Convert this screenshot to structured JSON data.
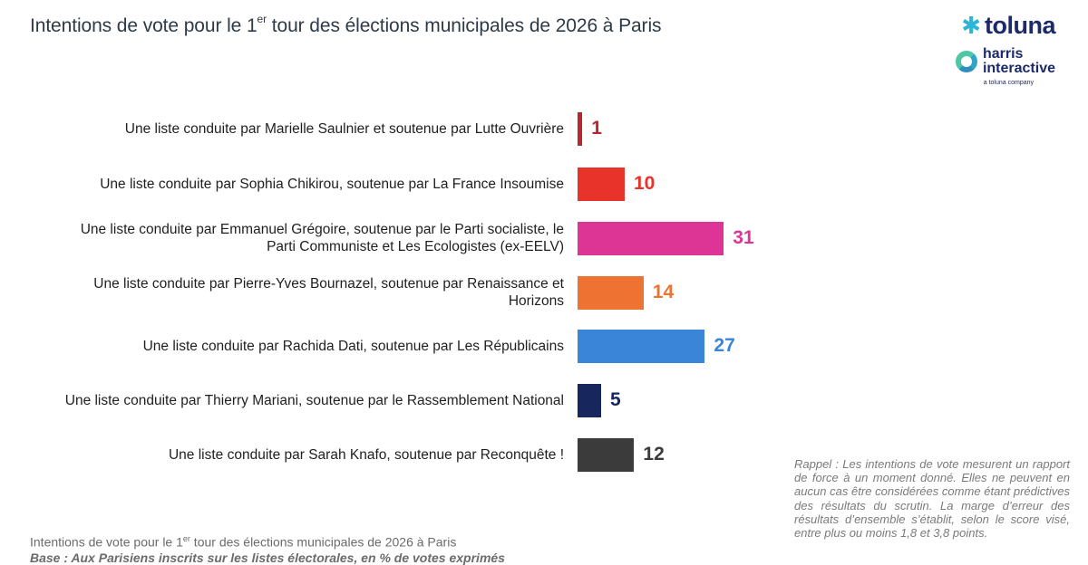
{
  "header": {
    "title_before": "Intentions de vote pour le 1",
    "title_sup": "er",
    "title_after": " tour des élections municipales de 2026 à Paris"
  },
  "logos": {
    "toluna": "toluna",
    "harris_line1": "harris",
    "harris_line2": "interactive",
    "company": "a toluna company"
  },
  "chart_data": {
    "type": "bar",
    "orientation": "horizontal",
    "title": "Intentions de vote pour le 1er tour des élections municipales de 2026 à Paris",
    "unit": "% de votes exprimés",
    "xlim": [
      0,
      35
    ],
    "categories": [
      "Une liste conduite par Marielle Saulnier et soutenue par Lutte Ouvrière",
      "Une liste conduite par Sophia Chikirou, soutenue par La France Insoumise",
      "Une liste conduite par Emmanuel Grégoire, soutenue par le Parti socialiste, le Parti Communiste et Les Ecologistes (ex-EELV)",
      "Une liste conduite par Pierre-Yves Bournazel, soutenue par Renaissance et Horizons",
      "Une liste conduite par Rachida Dati, soutenue par Les Républicains",
      "Une liste conduite par Thierry Mariani, soutenue par le Rassemblement National",
      "Une liste conduite par Sarah Knafo, soutenue par Reconquête !"
    ],
    "values": [
      1,
      10,
      31,
      14,
      27,
      5,
      12
    ],
    "colors": [
      "#b7282e",
      "#e8332a",
      "#dc3596",
      "#ee7232",
      "#3a85d8",
      "#17275e",
      "#3b3b3b"
    ]
  },
  "footer": {
    "title_before": "Intentions de vote pour le 1",
    "title_sup": "er",
    "title_after": " tour des élections municipales de 2026 à Paris",
    "base": "Base : Aux Parisiens inscrits sur les listes électorales, en % de votes exprimés"
  },
  "note": "Rappel : Les intentions de vote mesurent un rapport de force à un moment donné. Elles ne peuvent en aucun cas être considérées comme étant prédictives des résultats du scrutin. La marge d’erreur des résultats d’ensemble s’établit, selon le score visé, entre plus ou moins 1,8 et 3,8 points."
}
